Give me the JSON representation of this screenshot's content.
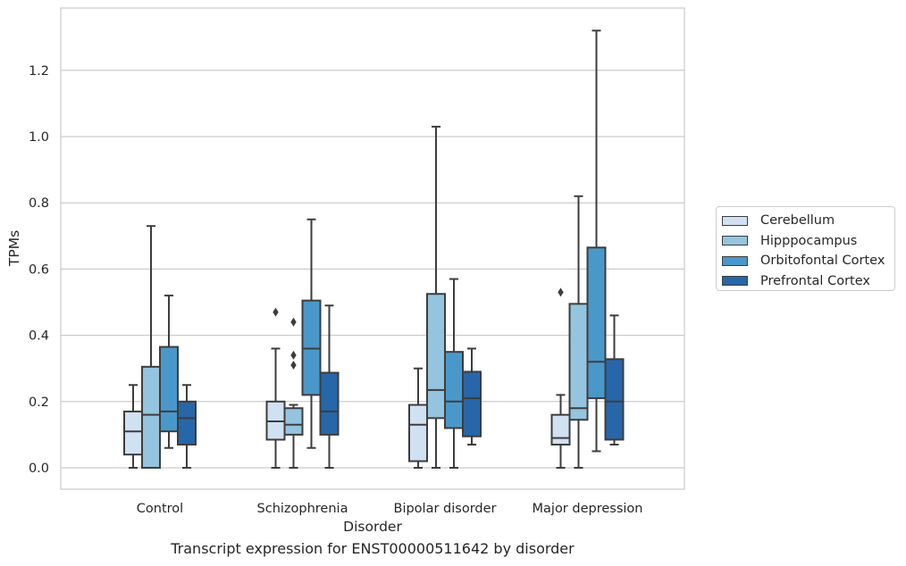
{
  "chart_data": {
    "type": "box",
    "categories": [
      "Control",
      "Schizophrenia",
      "Bipolar disorder",
      "Major depression"
    ],
    "xlabel": "Disorder",
    "ylabel": "TPMs",
    "caption": "Transcript expression for ENST00000511642 by disorder",
    "ylim": [
      -0.065,
      1.39
    ],
    "yticks": [
      0.0,
      0.2,
      0.4,
      0.6,
      0.8,
      1.0,
      1.2
    ],
    "ytick_labels": [
      "0.0",
      "0.2",
      "0.4",
      "0.6",
      "0.8",
      "1.0",
      "1.2"
    ],
    "grid": "horizontal",
    "legend_position": "right, outside plot",
    "series": [
      {
        "name": "Cerebellum",
        "color": "#d0e1f2",
        "boxes": [
          {
            "whisker_low": 0.0,
            "q1": 0.04,
            "median": 0.11,
            "q3": 0.17,
            "whisker_high": 0.25,
            "outliers": []
          },
          {
            "whisker_low": 0.0,
            "q1": 0.085,
            "median": 0.14,
            "q3": 0.2,
            "whisker_high": 0.36,
            "outliers": [
              0.47
            ]
          },
          {
            "whisker_low": 0.0,
            "q1": 0.02,
            "median": 0.13,
            "q3": 0.19,
            "whisker_high": 0.3,
            "outliers": []
          },
          {
            "whisker_low": 0.0,
            "q1": 0.07,
            "median": 0.09,
            "q3": 0.16,
            "whisker_high": 0.22,
            "outliers": [
              0.53
            ]
          }
        ]
      },
      {
        "name": "Hipppocampus",
        "color": "#94c4df",
        "boxes": [
          {
            "whisker_low": 0.0,
            "q1": 0.0,
            "median": 0.16,
            "q3": 0.305,
            "whisker_high": 0.73,
            "outliers": []
          },
          {
            "whisker_low": 0.0,
            "q1": 0.1,
            "median": 0.13,
            "q3": 0.18,
            "whisker_high": 0.19,
            "outliers": [
              0.44,
              0.34,
              0.31
            ]
          },
          {
            "whisker_low": 0.0,
            "q1": 0.15,
            "median": 0.235,
            "q3": 0.525,
            "whisker_high": 1.03,
            "outliers": []
          },
          {
            "whisker_low": 0.0,
            "q1": 0.145,
            "median": 0.18,
            "q3": 0.495,
            "whisker_high": 0.82,
            "outliers": []
          }
        ]
      },
      {
        "name": "Orbitofontal Cortex",
        "color": "#4a98c9",
        "boxes": [
          {
            "whisker_low": 0.06,
            "q1": 0.11,
            "median": 0.17,
            "q3": 0.365,
            "whisker_high": 0.52,
            "outliers": []
          },
          {
            "whisker_low": 0.06,
            "q1": 0.22,
            "median": 0.36,
            "q3": 0.505,
            "whisker_high": 0.75,
            "outliers": []
          },
          {
            "whisker_low": 0.0,
            "q1": 0.12,
            "median": 0.2,
            "q3": 0.35,
            "whisker_high": 0.57,
            "outliers": []
          },
          {
            "whisker_low": 0.05,
            "q1": 0.21,
            "median": 0.32,
            "q3": 0.665,
            "whisker_high": 1.32,
            "outliers": []
          }
        ]
      },
      {
        "name": "Prefrontal Cortex",
        "color": "#2766a8",
        "boxes": [
          {
            "whisker_low": 0.0,
            "q1": 0.07,
            "median": 0.15,
            "q3": 0.2,
            "whisker_high": 0.25,
            "outliers": []
          },
          {
            "whisker_low": 0.0,
            "q1": 0.1,
            "median": 0.17,
            "q3": 0.287,
            "whisker_high": 0.49,
            "outliers": []
          },
          {
            "whisker_low": 0.07,
            "q1": 0.095,
            "median": 0.21,
            "q3": 0.29,
            "whisker_high": 0.36,
            "outliers": []
          },
          {
            "whisker_low": 0.07,
            "q1": 0.085,
            "median": 0.2,
            "q3": 0.328,
            "whisker_high": 0.46,
            "outliers": []
          }
        ]
      }
    ]
  }
}
